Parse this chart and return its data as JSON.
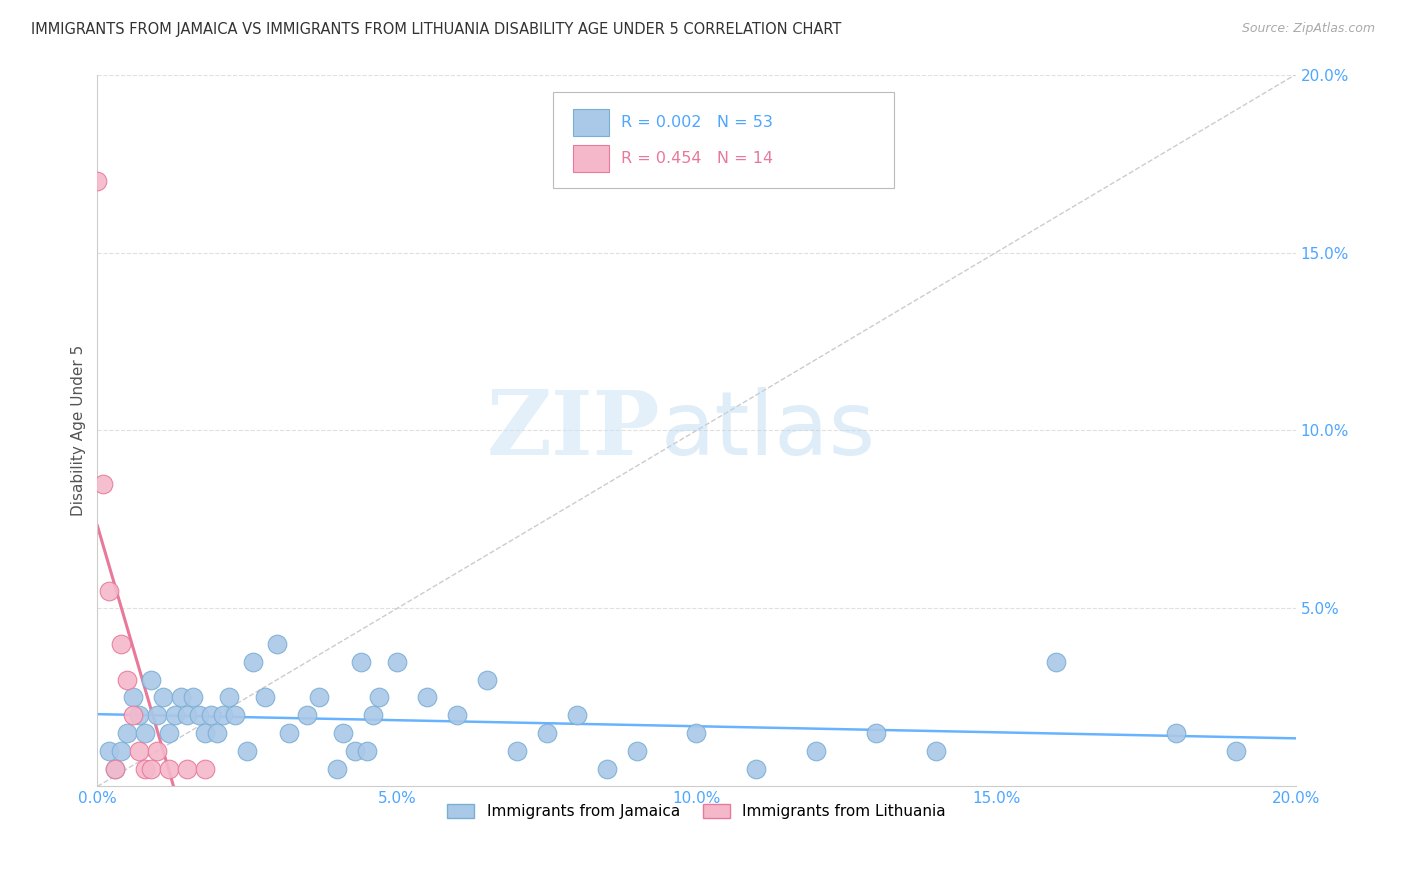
{
  "title": "IMMIGRANTS FROM JAMAICA VS IMMIGRANTS FROM LITHUANIA DISABILITY AGE UNDER 5 CORRELATION CHART",
  "source": "Source: ZipAtlas.com",
  "ylabel": "Disability Age Under 5",
  "xlim": [
    0.0,
    0.2
  ],
  "ylim": [
    0.0,
    0.2
  ],
  "xtick_vals": [
    0.0,
    0.05,
    0.1,
    0.15,
    0.2
  ],
  "xtick_labels": [
    "0.0%",
    "5.0%",
    "10.0%",
    "15.0%",
    "20.0%"
  ],
  "ytick_vals": [
    0.05,
    0.1,
    0.15,
    0.2
  ],
  "ytick_labels": [
    "5.0%",
    "10.0%",
    "15.0%",
    "20.0%"
  ],
  "jamaica_color": "#aac8e8",
  "jamaica_edge_color": "#7aafd4",
  "lithuania_color": "#f5b8cb",
  "lithuania_edge_color": "#e8799a",
  "R_jamaica": 0.002,
  "N_jamaica": 53,
  "R_lithuania": 0.454,
  "N_lithuania": 14,
  "blue_color": "#4da6ff",
  "pink_color": "#e8799a",
  "title_color": "#333333",
  "source_color": "#aaaaaa",
  "ylabel_color": "#555555",
  "watermark_zip": "ZIP",
  "watermark_atlas": "atlas",
  "grid_color": "#e0e0e0",
  "diag_color": "#cccccc",
  "jamaica_x": [
    0.002,
    0.003,
    0.004,
    0.005,
    0.006,
    0.007,
    0.008,
    0.009,
    0.01,
    0.011,
    0.012,
    0.013,
    0.014,
    0.015,
    0.016,
    0.017,
    0.018,
    0.019,
    0.02,
    0.021,
    0.022,
    0.023,
    0.025,
    0.026,
    0.028,
    0.03,
    0.032,
    0.035,
    0.037,
    0.04,
    0.041,
    0.043,
    0.044,
    0.045,
    0.046,
    0.047,
    0.05,
    0.055,
    0.06,
    0.065,
    0.07,
    0.075,
    0.08,
    0.085,
    0.09,
    0.1,
    0.11,
    0.12,
    0.13,
    0.14,
    0.16,
    0.18,
    0.19
  ],
  "jamaica_y": [
    0.01,
    0.005,
    0.01,
    0.015,
    0.025,
    0.02,
    0.015,
    0.03,
    0.02,
    0.025,
    0.015,
    0.02,
    0.025,
    0.02,
    0.025,
    0.02,
    0.015,
    0.02,
    0.015,
    0.02,
    0.025,
    0.02,
    0.01,
    0.035,
    0.025,
    0.04,
    0.015,
    0.02,
    0.025,
    0.005,
    0.015,
    0.01,
    0.035,
    0.01,
    0.02,
    0.025,
    0.035,
    0.025,
    0.02,
    0.03,
    0.01,
    0.015,
    0.02,
    0.005,
    0.01,
    0.015,
    0.005,
    0.01,
    0.015,
    0.01,
    0.035,
    0.015,
    0.01
  ],
  "lithuania_x": [
    0.0,
    0.001,
    0.002,
    0.003,
    0.004,
    0.005,
    0.006,
    0.007,
    0.008,
    0.009,
    0.01,
    0.012,
    0.015,
    0.018
  ],
  "lithuania_y": [
    0.17,
    0.085,
    0.055,
    0.005,
    0.04,
    0.03,
    0.02,
    0.01,
    0.005,
    0.005,
    0.01,
    0.005,
    0.005,
    0.005
  ]
}
